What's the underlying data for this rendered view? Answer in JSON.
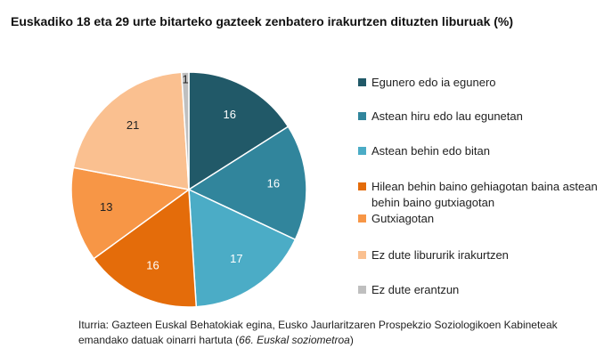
{
  "chart_data": {
    "type": "pie",
    "title": "Euskadiko 18 eta 29 urte bitarteko gazteek zenbatero irakurtzen dituzten liburuak (%)",
    "categories": [
      "Egunero edo ia egunero",
      "Astean hiru edo lau egunetan",
      "Astean behin edo bitan",
      "Hilean behin baino gehiagotan baina astean behin baino gutxiagotan",
      "Gutxiagotan",
      "Ez dute liburu­rik irakurtzen",
      "Ez dute erantzun"
    ],
    "values": [
      16,
      16,
      17,
      16,
      13,
      21,
      1
    ],
    "colors": [
      "#215968",
      "#31859c",
      "#4bacc6",
      "#e46c0a",
      "#f79646",
      "#fac090",
      "#bfbfbf"
    ],
    "legend": "right",
    "source": [
      "Iturria: Gazteen Euskal Behatokiak egina, Eusko Jaurlaritzaren Prospekzio Soziologikoen Kabineteak emandako datuak oinarri hartuta  (",
      "66. Euskal soziometroa",
      ")"
    ]
  }
}
